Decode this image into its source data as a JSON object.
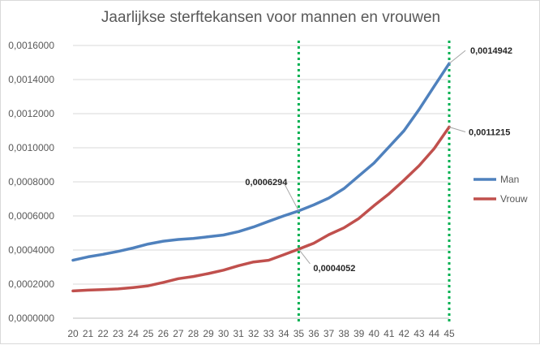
{
  "chart_data": {
    "type": "line",
    "title": "Jaarlijkse sterftekansen voor mannen en vrouwen",
    "xlabel": "",
    "ylabel": "",
    "x": [
      20,
      21,
      22,
      23,
      24,
      25,
      26,
      27,
      28,
      29,
      30,
      31,
      32,
      33,
      34,
      35,
      36,
      37,
      38,
      39,
      40,
      41,
      42,
      43,
      44,
      45
    ],
    "ylim": [
      0,
      0.0016
    ],
    "yticks": [
      "0,0000000",
      "0,0002000",
      "0,0004000",
      "0,0006000",
      "0,0008000",
      "0,0010000",
      "0,0012000",
      "0,0014000",
      "0,0016000"
    ],
    "ytick_values": [
      0,
      0.0002,
      0.0004,
      0.0006,
      0.0008,
      0.001,
      0.0012,
      0.0014,
      0.0016
    ],
    "grid": true,
    "legend_position": "right",
    "series": [
      {
        "name": "Man",
        "color": "#4f81bd",
        "values": [
          0.00034,
          0.00036,
          0.000375,
          0.000392,
          0.000412,
          0.000435,
          0.000452,
          0.000462,
          0.000468,
          0.000478,
          0.000488,
          0.000508,
          0.000535,
          0.000568,
          0.0006,
          0.0006294,
          0.000665,
          0.000705,
          0.00076,
          0.000835,
          0.00091,
          0.001005,
          0.0011,
          0.001225,
          0.00136,
          0.0014942
        ]
      },
      {
        "name": "Vrouw",
        "color": "#c0504d",
        "values": [
          0.00016,
          0.000165,
          0.000168,
          0.000172,
          0.00018,
          0.00019,
          0.00021,
          0.000232,
          0.000245,
          0.000262,
          0.000282,
          0.000308,
          0.00033,
          0.00034,
          0.000372,
          0.0004052,
          0.00044,
          0.00049,
          0.00053,
          0.000585,
          0.00066,
          0.00073,
          0.00081,
          0.000895,
          0.000995,
          0.0011215
        ]
      }
    ],
    "vertical_markers": [
      {
        "x": 35,
        "color": "#00b050"
      },
      {
        "x": 45,
        "color": "#00b050"
      }
    ],
    "annotations": [
      {
        "series": "Man",
        "x": 35,
        "text": "0,0006294",
        "placement": "upper-left"
      },
      {
        "series": "Vrouw",
        "x": 35,
        "text": "0,0004052",
        "placement": "lower-right"
      },
      {
        "series": "Man",
        "x": 45,
        "text": "0,0014942",
        "placement": "upper-right"
      },
      {
        "series": "Vrouw",
        "x": 45,
        "text": "0,0011215",
        "placement": "right"
      }
    ]
  }
}
